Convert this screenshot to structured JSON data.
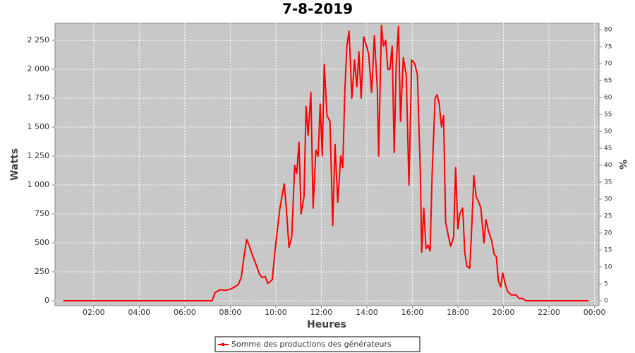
{
  "chart_data": {
    "type": "line",
    "title": "7-8-2019",
    "xlabel": "Heures",
    "ylabel": "Watts",
    "y2label": "%",
    "x": [
      0.67,
      7.2,
      7.33,
      7.55,
      7.8,
      8.0,
      8.2,
      8.35,
      8.48,
      8.6,
      8.72,
      8.82,
      8.94,
      9.1,
      9.28,
      9.4,
      9.53,
      9.65,
      9.84,
      9.96,
      10.06,
      10.18,
      10.37,
      10.46,
      10.58,
      10.7,
      10.83,
      10.92,
      11.02,
      11.11,
      11.24,
      11.33,
      11.42,
      11.54,
      11.64,
      11.76,
      11.86,
      11.95,
      12.04,
      12.13,
      12.25,
      12.38,
      12.5,
      12.6,
      12.72,
      12.85,
      12.94,
      13.03,
      13.12,
      13.22,
      13.34,
      13.46,
      13.56,
      13.65,
      13.75,
      13.86,
      13.99,
      14.08,
      14.21,
      14.33,
      14.46,
      14.52,
      14.64,
      14.73,
      14.83,
      14.92,
      15.01,
      15.11,
      15.2,
      15.29,
      15.39,
      15.48,
      15.6,
      15.73,
      15.85,
      15.97,
      16.1,
      16.22,
      16.35,
      16.41,
      16.5,
      16.6,
      16.69,
      16.78,
      16.87,
      17.0,
      17.09,
      17.18,
      17.28,
      17.37,
      17.46,
      17.59,
      17.68,
      17.81,
      17.9,
      18.0,
      18.08,
      18.21,
      18.3,
      18.39,
      18.52,
      18.61,
      18.7,
      18.8,
      18.92,
      19.01,
      19.14,
      19.23,
      19.35,
      19.48,
      19.6,
      19.69,
      19.78,
      19.88,
      19.97,
      20.1,
      20.19,
      20.34,
      20.56,
      20.69,
      20.84,
      20.99,
      23.75
    ],
    "series": [
      {
        "name": "Somme des productions des  générateurs",
        "color": "#ff0000",
        "values": [
          0,
          0,
          70,
          95,
          90,
          100,
          120,
          140,
          200,
          380,
          530,
          480,
          410,
          330,
          230,
          200,
          210,
          150,
          180,
          420,
          600,
          800,
          1010,
          800,
          460,
          550,
          1170,
          1100,
          1370,
          750,
          900,
          1680,
          1430,
          1800,
          800,
          1300,
          1250,
          1700,
          1250,
          2040,
          1600,
          1550,
          650,
          1350,
          850,
          1250,
          1150,
          1800,
          2200,
          2330,
          1750,
          2080,
          1850,
          2150,
          1750,
          2280,
          2200,
          2130,
          1800,
          2290,
          1830,
          1250,
          2380,
          2200,
          2250,
          2000,
          2000,
          2200,
          1280,
          2050,
          2370,
          1550,
          2100,
          1950,
          1000,
          2080,
          2050,
          1950,
          1100,
          420,
          800,
          450,
          480,
          430,
          1100,
          1750,
          1780,
          1700,
          1500,
          1600,
          680,
          550,
          470,
          550,
          1150,
          620,
          750,
          800,
          420,
          300,
          280,
          650,
          1080,
          900,
          850,
          800,
          500,
          700,
          600,
          520,
          400,
          380,
          170,
          120,
          240,
          130,
          80,
          50,
          50,
          20,
          20,
          0,
          0
        ]
      }
    ],
    "xlim": [
      0.3,
      24.2
    ],
    "xticks": [
      {
        "value": 2,
        "label": "02:00"
      },
      {
        "value": 4,
        "label": "04:00"
      },
      {
        "value": 6,
        "label": "06:00"
      },
      {
        "value": 8,
        "label": "08:00"
      },
      {
        "value": 10,
        "label": "10:00"
      },
      {
        "value": 12,
        "label": "12:00"
      },
      {
        "value": 14,
        "label": "14:00"
      },
      {
        "value": 16,
        "label": "16:00"
      },
      {
        "value": 18,
        "label": "18:00"
      },
      {
        "value": 20,
        "label": "20:00"
      },
      {
        "value": 22,
        "label": "22:00"
      },
      {
        "value": 24,
        "label": "00:00"
      }
    ],
    "ylim": [
      -43,
      2397
    ],
    "yticks": [
      0,
      250,
      500,
      750,
      {
        "value": 1000,
        "label": "1 000"
      },
      {
        "value": 1250,
        "label": "1 250"
      },
      {
        "value": 1500,
        "label": "1 500"
      },
      {
        "value": 1750,
        "label": "1 750"
      },
      {
        "value": 2000,
        "label": "2 000"
      },
      {
        "value": 2250,
        "label": "2 250"
      }
    ],
    "y2lim": [
      -1.46,
      81.9
    ],
    "y2ticks": [
      0,
      5,
      10,
      15,
      20,
      25,
      30,
      35,
      40,
      45,
      50,
      55,
      60,
      65,
      70,
      75,
      80
    ],
    "grid": true,
    "legend": "bottom"
  }
}
